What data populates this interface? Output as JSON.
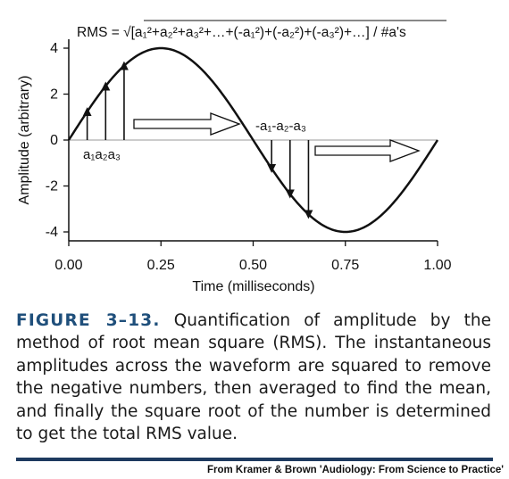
{
  "chart_data": {
    "type": "line",
    "title": "",
    "formula": "RMS = √[a₁²+a₂²+a₃²+…+(-a₁²)+(-a₂²)+(-a₃²)+…] / #a's",
    "xlabel": "Time (milliseconds)",
    "ylabel": "Amplitude (arbitrary)",
    "xlim": [
      0,
      1
    ],
    "ylim": [
      -4.3,
      4.5
    ],
    "x_ticks": [
      "0.00",
      "0.25",
      "0.50",
      "0.75",
      "1.00"
    ],
    "y_ticks": [
      "4",
      "2",
      "0",
      "-2",
      "-4"
    ],
    "series": [
      {
        "amplitude": 4,
        "period": 1,
        "function": "sine"
      }
    ],
    "positive_samples": {
      "x": [
        0.05,
        0.1,
        0.15
      ],
      "label": "a₁a₂a₃"
    },
    "negative_samples": {
      "x": [
        0.55,
        0.6,
        0.65
      ],
      "label": "-a₁-a₂-a₃"
    },
    "grid": false
  },
  "caption": {
    "figure_label": "FIGURE 3–13.",
    "text": " Quantification of amplitude by the method of root mean square (RMS). The instantaneous amplitudes across the waveform are squared to re­move the negative numbers, then averaged to find the mean, and finally the square root of the number is de­termined to get the total RMS value."
  },
  "credit": "From Kramer & Brown 'Audiology: From Science to Practice'"
}
